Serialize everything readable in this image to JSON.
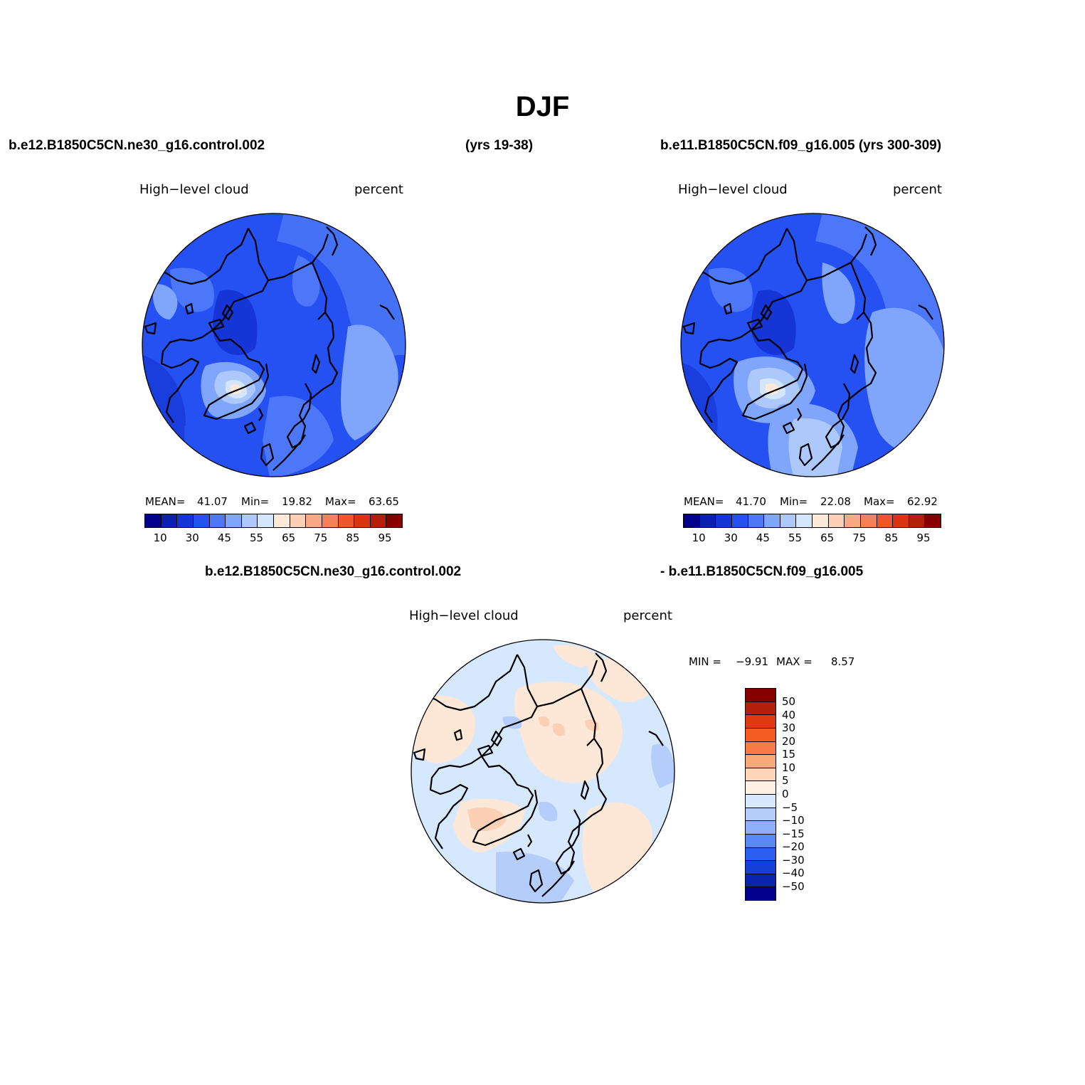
{
  "title": "DJF",
  "panel_left": {
    "case_name": "b.e12.B1850C5CN.ne30_g16.control.002",
    "years": "(yrs 19-38)",
    "variable": "High−level cloud",
    "units": "percent",
    "mean_label": "MEAN=",
    "mean_value": "41.07",
    "min_label": "Min=",
    "min_value": "19.82",
    "max_label": "Max=",
    "max_value": "63.65"
  },
  "panel_right": {
    "case_name": "b.e11.B1850C5CN.f09_g16.005 (yrs 300-309)",
    "variable": "High−level cloud",
    "units": "percent",
    "mean_label": "MEAN=",
    "mean_value": "41.70",
    "min_label": "Min=",
    "min_value": "22.08",
    "max_label": "Max=",
    "max_value": "62.92"
  },
  "panel_diff": {
    "case_a": "b.e12.B1850C5CN.ne30_g16.control.002",
    "case_b": "- b.e11.B1850C5CN.f09_g16.005",
    "variable": "High−level cloud",
    "units": "percent",
    "min_label": "MIN =",
    "min_value": "−9.91",
    "max_label": "MAX =",
    "max_value": "8.57"
  },
  "abs_colorbar": {
    "colors": [
      "#00008c",
      "#0b1fb0",
      "#1535d6",
      "#2550f2",
      "#4b77f8",
      "#7fa6fa",
      "#adc8fb",
      "#d4e6fc",
      "#fde9d8",
      "#fbd0b4",
      "#f8a883",
      "#f5815b",
      "#f0562c",
      "#d93311",
      "#b31f0b",
      "#870000"
    ],
    "tick_labels": [
      "10",
      "30",
      "45",
      "55",
      "65",
      "75",
      "85",
      "95"
    ]
  },
  "diff_colorbar": {
    "colors": [
      "#870000",
      "#b31f0b",
      "#de3a10",
      "#f55c22",
      "#f87b45",
      "#f9a679",
      "#fdd5b8",
      "#fef0e3",
      "#d6e8fd",
      "#b4cdfb",
      "#8fb0f9",
      "#5a86f6",
      "#2d5ef3",
      "#163fd8",
      "#0b24b0",
      "#00008c"
    ],
    "tick_labels": [
      "50",
      "40",
      "30",
      "20",
      "15",
      "10",
      "5",
      "0",
      "−5",
      "−10",
      "−15",
      "−20",
      "−30",
      "−40",
      "−50"
    ]
  }
}
